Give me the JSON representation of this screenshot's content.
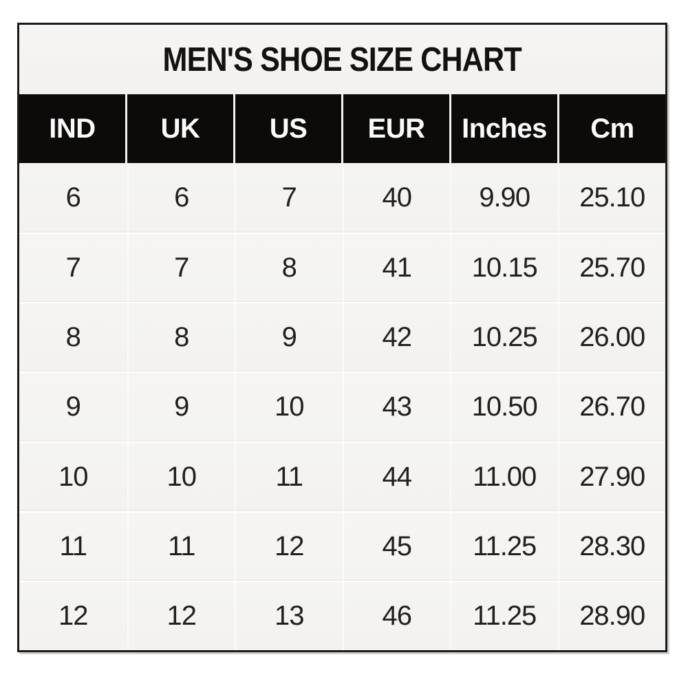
{
  "title": "MEN'S SHOE SIZE CHART",
  "table": {
    "columns": [
      "IND",
      "UK",
      "US",
      "EUR",
      "Inches",
      "Cm"
    ],
    "rows": [
      [
        "6",
        "6",
        "7",
        "40",
        "9.90",
        "25.10"
      ],
      [
        "7",
        "7",
        "8",
        "41",
        "10.15",
        "25.70"
      ],
      [
        "8",
        "8",
        "9",
        "42",
        "10.25",
        "26.00"
      ],
      [
        "9",
        "9",
        "10",
        "43",
        "10.50",
        "26.70"
      ],
      [
        "10",
        "10",
        "11",
        "44",
        "11.00",
        "27.90"
      ],
      [
        "11",
        "11",
        "12",
        "45",
        "11.25",
        "28.30"
      ],
      [
        "12",
        "12",
        "13",
        "46",
        "11.25",
        "28.90"
      ]
    ]
  },
  "colors": {
    "page_bg": "#ffffff",
    "frame_bg": "#f4f3f1",
    "frame_border": "#1b1a19",
    "header_bg": "#0c0b0a",
    "header_text": "#fafafa",
    "body_text": "#22201e",
    "divider": "#ffffff"
  },
  "chart_data": {
    "type": "table",
    "title": "MEN'S SHOE SIZE CHART",
    "columns": [
      "IND",
      "UK",
      "US",
      "EUR",
      "Inches",
      "Cm"
    ],
    "rows": [
      [
        "6",
        "6",
        "7",
        "40",
        "9.90",
        "25.10"
      ],
      [
        "7",
        "7",
        "8",
        "41",
        "10.15",
        "25.70"
      ],
      [
        "8",
        "8",
        "9",
        "42",
        "10.25",
        "26.00"
      ],
      [
        "9",
        "9",
        "10",
        "43",
        "10.50",
        "26.70"
      ],
      [
        "10",
        "10",
        "11",
        "44",
        "11.00",
        "27.90"
      ],
      [
        "11",
        "11",
        "12",
        "45",
        "11.25",
        "28.30"
      ],
      [
        "12",
        "12",
        "13",
        "46",
        "11.25",
        "28.90"
      ]
    ],
    "layout": {
      "header_style": "black cells, white bold text, white gaps between cells",
      "body_style": "off-white rows with faint white separators, centered dark text",
      "grid": "6 equal-width columns, 7 data rows"
    }
  }
}
